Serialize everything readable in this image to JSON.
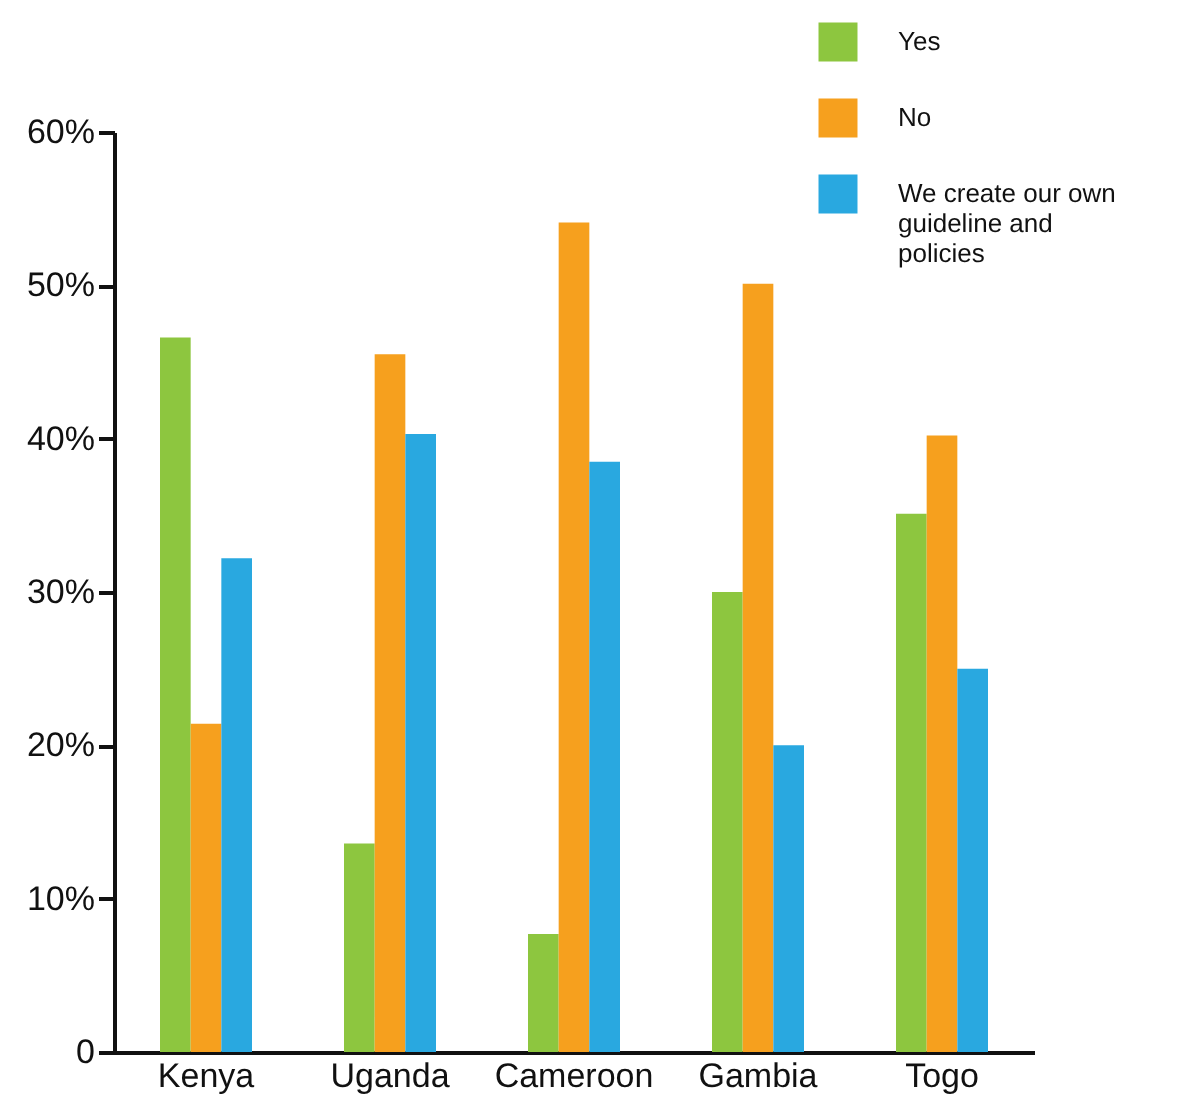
{
  "chart_data": {
    "type": "bar",
    "categories": [
      "Kenya",
      "Uganda",
      "Cameroon",
      "Gambia",
      "Togo"
    ],
    "series": [
      {
        "name": "Yes",
        "color": "#8dc63f",
        "values": [
          46.6,
          13.6,
          7.7,
          30,
          35.1
        ]
      },
      {
        "name": "No",
        "color": "#f6a01e",
        "values": [
          21.4,
          45.5,
          54.1,
          50.1,
          40.2
        ]
      },
      {
        "name": "We create our own guideline and policies",
        "color": "#29a8e0",
        "values": [
          32.2,
          40.3,
          38.5,
          20,
          25
        ]
      }
    ],
    "ylim": [
      0,
      60
    ],
    "yticks": [
      0,
      {
        "value": 10,
        "label": "10%"
      },
      {
        "value": 20,
        "label": "20%"
      },
      {
        "value": 30,
        "label": "30%"
      },
      {
        "value": 40,
        "label": "40%"
      },
      {
        "value": 50,
        "label": "50%"
      },
      {
        "value": 60,
        "label": "60%"
      }
    ],
    "grid": false,
    "legend": "top right"
  }
}
